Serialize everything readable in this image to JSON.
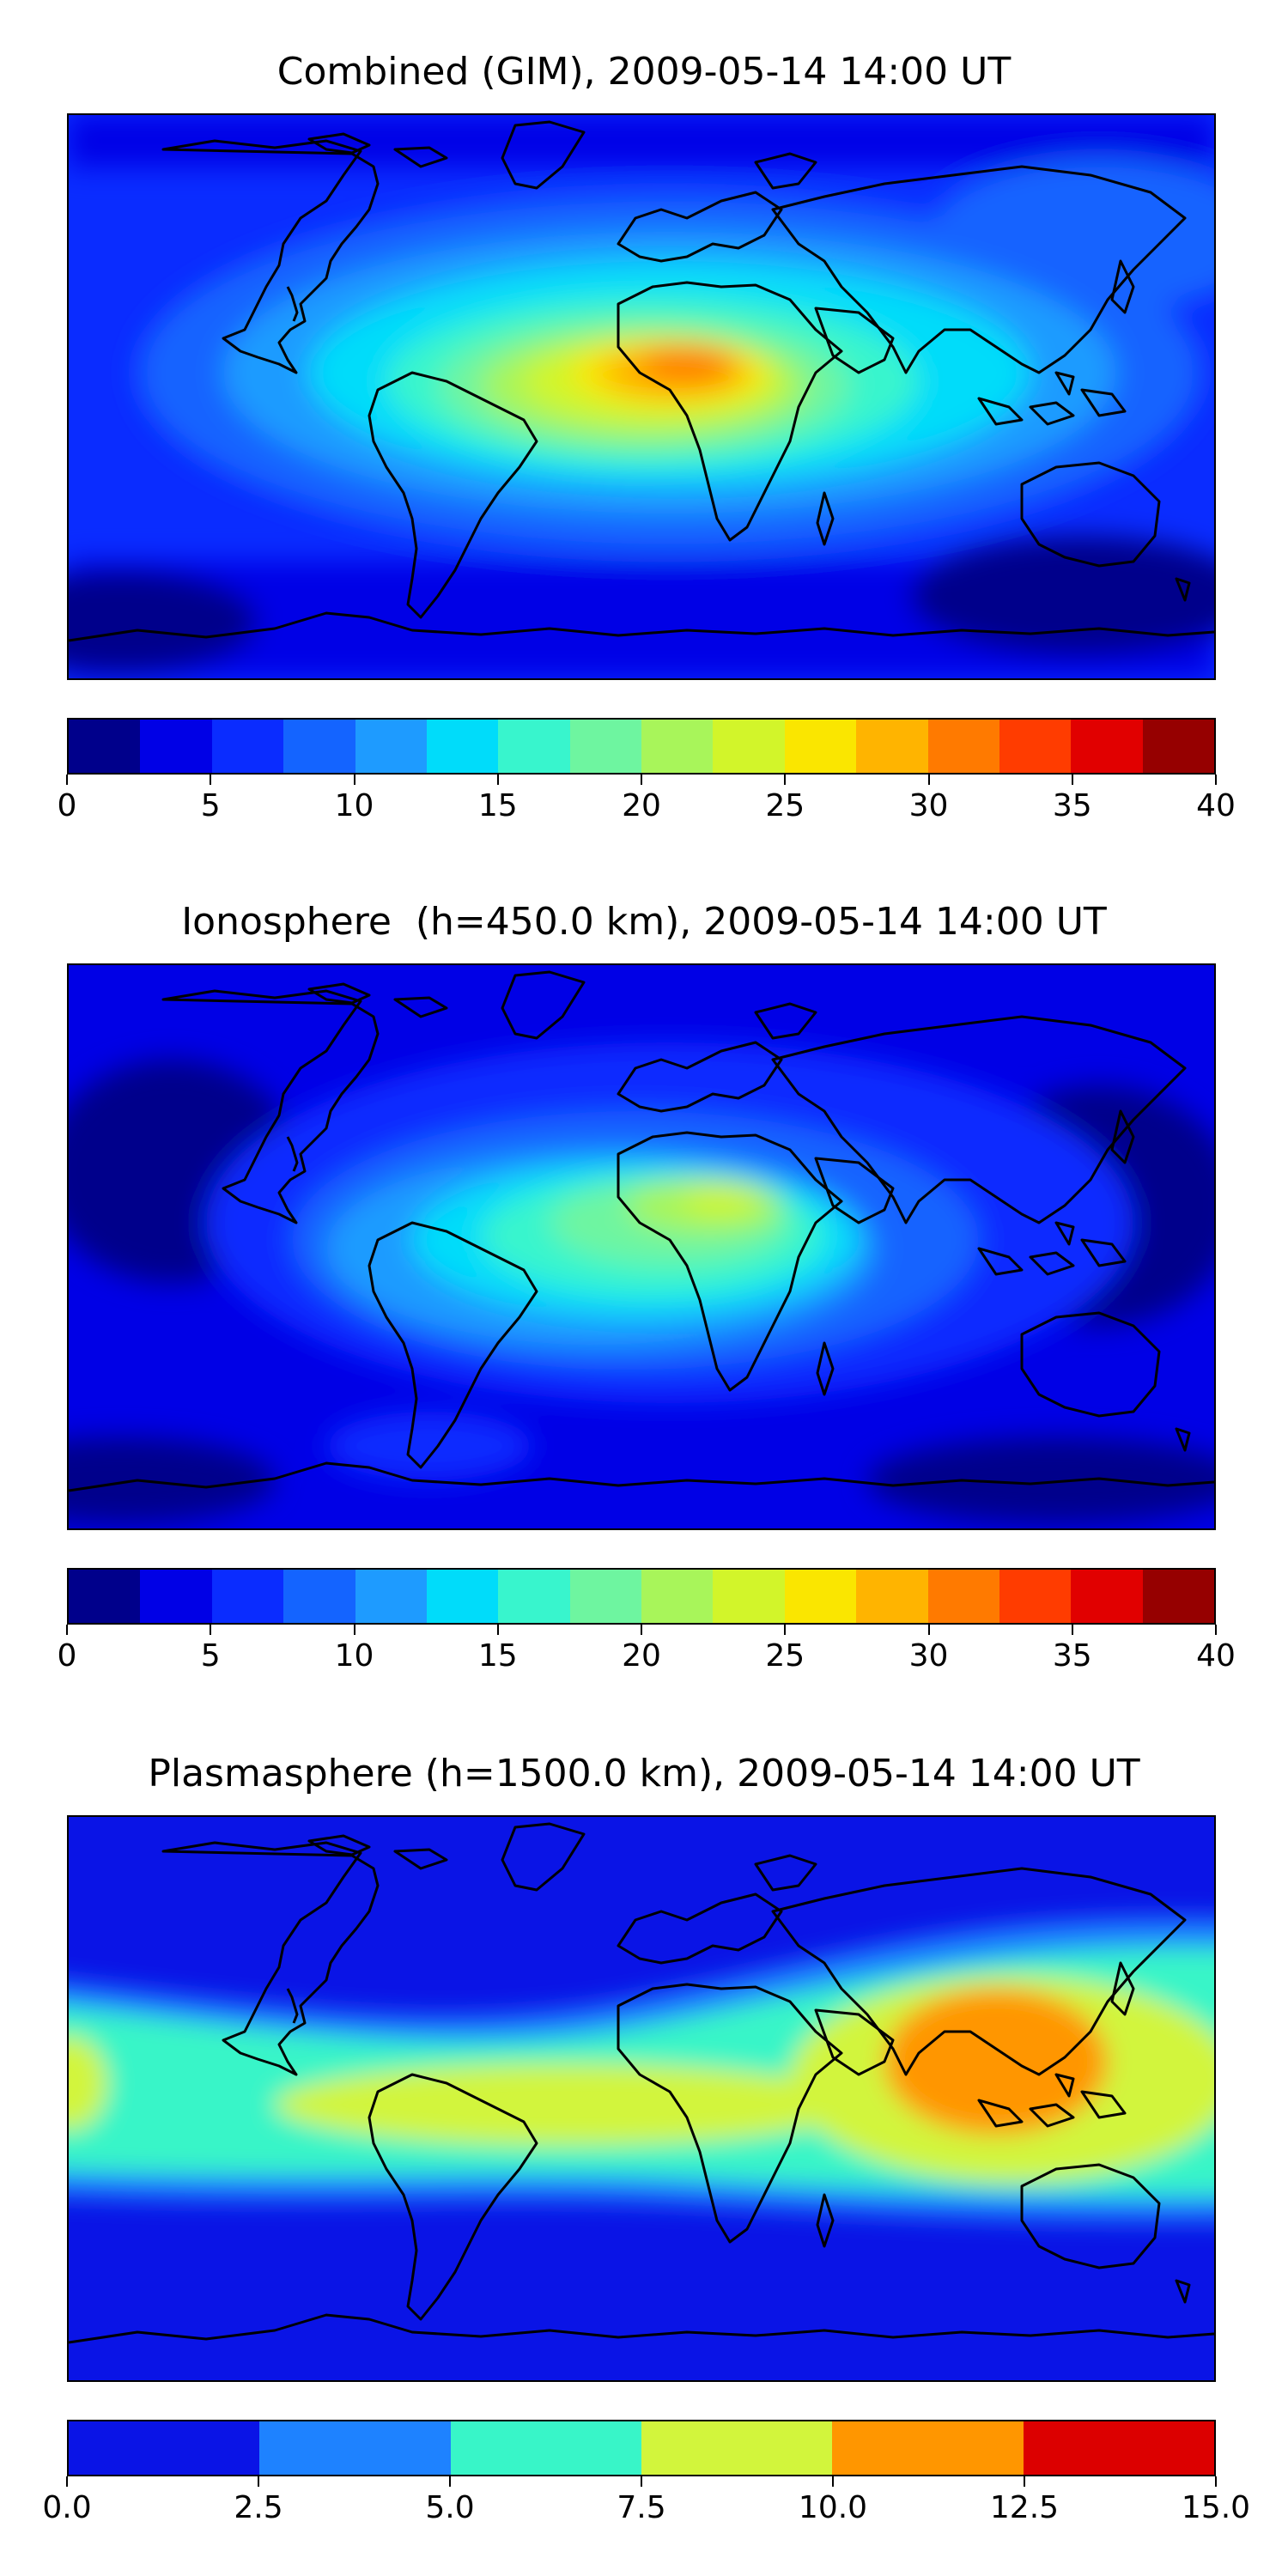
{
  "panels": [
    {
      "title": "Combined (GIM), 2009-05-14 14:00 UT",
      "colorbar": {
        "ticks": [
          "0",
          "5",
          "10",
          "15",
          "20",
          "25",
          "30",
          "35",
          "40"
        ],
        "levels": [
          "#00008b",
          "#0000e6",
          "#0a2cff",
          "#1464ff",
          "#1e9bff",
          "#00dcfa",
          "#38f5cd",
          "#6ef5a0",
          "#a8f55a",
          "#d2f52a",
          "#fae600",
          "#ffb400",
          "#ff7a00",
          "#ff3c00",
          "#e10000",
          "#960000"
        ]
      }
    },
    {
      "title": "Ionosphere  (h=450.0 km), 2009-05-14 14:00 UT",
      "colorbar": {
        "ticks": [
          "0",
          "5",
          "10",
          "15",
          "20",
          "25",
          "30",
          "35",
          "40"
        ],
        "levels": [
          "#00008b",
          "#0000e6",
          "#0a2cff",
          "#1464ff",
          "#1e9bff",
          "#00dcfa",
          "#38f5cd",
          "#6ef5a0",
          "#a8f55a",
          "#d2f52a",
          "#fae600",
          "#ffb400",
          "#ff7a00",
          "#ff3c00",
          "#e10000",
          "#960000"
        ]
      }
    },
    {
      "title": "Plasmasphere (h=1500.0 km), 2009-05-14 14:00 UT",
      "colorbar": {
        "ticks": [
          "0.0",
          "2.5",
          "5.0",
          "7.5",
          "10.0",
          "12.5",
          "15.0"
        ],
        "levels": [
          "#0a14e6",
          "#1e82ff",
          "#38f5c8",
          "#d2f53c",
          "#ff9600",
          "#dc0000"
        ]
      }
    }
  ]
}
